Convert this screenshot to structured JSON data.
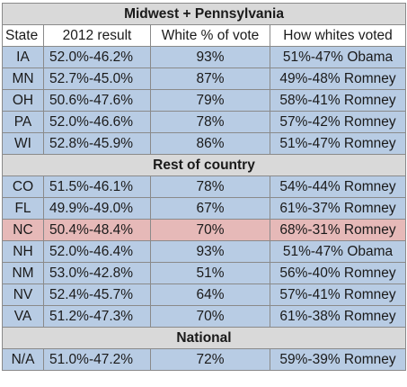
{
  "title": "Midwest + Pennsylvania",
  "columns": [
    "State",
    "2012 result",
    "White % of vote",
    "How whites voted"
  ],
  "sections": [
    {
      "name": "Midwest + Pennsylvania",
      "rows": [
        {
          "state": "IA",
          "result": "52.0%-46.2%",
          "white_pct": "93%",
          "white_vote": "51%-47% Obama"
        },
        {
          "state": "MN",
          "result": "52.7%-45.0%",
          "white_pct": "87%",
          "white_vote": "49%-48% Romney"
        },
        {
          "state": "OH",
          "result": "50.6%-47.6%",
          "white_pct": "79%",
          "white_vote": "58%-41% Romney"
        },
        {
          "state": "PA",
          "result": "52.0%-46.6%",
          "white_pct": "78%",
          "white_vote": "57%-42% Romney"
        },
        {
          "state": "WI",
          "result": "52.8%-45.9%",
          "white_pct": "86%",
          "white_vote": "51%-47% Romney"
        }
      ]
    },
    {
      "name": "Rest of country",
      "rows": [
        {
          "state": "CO",
          "result": "51.5%-46.1%",
          "white_pct": "78%",
          "white_vote": "54%-44% Romney"
        },
        {
          "state": "FL",
          "result": "49.9%-49.0%",
          "white_pct": "67%",
          "white_vote": "61%-37% Romney"
        },
        {
          "state": "NC",
          "result": "50.4%-48.4%",
          "white_pct": "70%",
          "white_vote": "68%-31% Romney",
          "highlight": true
        },
        {
          "state": "NH",
          "result": "52.0%-46.4%",
          "white_pct": "93%",
          "white_vote": "51%-47% Obama"
        },
        {
          "state": "NM",
          "result": "53.0%-42.8%",
          "white_pct": "51%",
          "white_vote": "56%-40% Romney"
        },
        {
          "state": "NV",
          "result": "52.4%-45.7%",
          "white_pct": "64%",
          "white_vote": "57%-41% Romney"
        },
        {
          "state": "VA",
          "result": "51.2%-47.3%",
          "white_pct": "70%",
          "white_vote": "61%-38% Romney"
        }
      ]
    },
    {
      "name": "National",
      "rows": [
        {
          "state": "N/A",
          "result": "51.0%-47.2%",
          "white_pct": "72%",
          "white_vote": "59%-39% Romney"
        }
      ]
    }
  ],
  "colors": {
    "section_header_bg": "#d9d9d9",
    "row_bg": "#b8cce4",
    "highlight_row_bg": "#e6b9b8",
    "border": "#8a8a8a"
  }
}
